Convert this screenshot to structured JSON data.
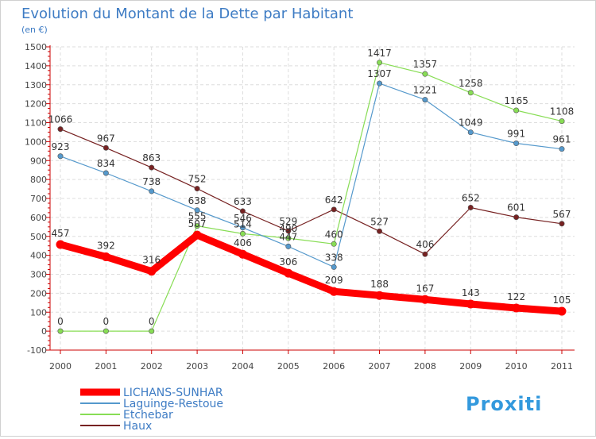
{
  "chart_data": {
    "type": "line",
    "title": "Evolution du Montant de la Dette par Habitant",
    "subtitle": "(en €)",
    "x": [
      "2000",
      "2001",
      "2002",
      "2003",
      "2004",
      "2005",
      "2006",
      "2007",
      "2008",
      "2009",
      "2010",
      "2011"
    ],
    "ylim": [
      -100,
      1500
    ],
    "yticks": [
      -100,
      0,
      100,
      200,
      300,
      400,
      500,
      600,
      700,
      800,
      900,
      1000,
      1100,
      1200,
      1300,
      1400,
      1500
    ],
    "grid": true,
    "legend_position": "bottom-left",
    "series": [
      {
        "name": "LICHANS-SUNHAR",
        "color": "#ff0000",
        "values": [
          457,
          392,
          316,
          507,
          406,
          306,
          209,
          188,
          167,
          143,
          122,
          105
        ]
      },
      {
        "name": "Laguinge-Restoue",
        "color": "#5599cc",
        "values": [
          923,
          834,
          738,
          638,
          546,
          447,
          338,
          1307,
          1221,
          1049,
          991,
          961
        ]
      },
      {
        "name": "Etchebar",
        "color": "#88dd55",
        "values": [
          0,
          0,
          0,
          555,
          514,
          490,
          460,
          1417,
          1357,
          1258,
          1165,
          1108
        ]
      },
      {
        "name": "Haux",
        "color": "#772222",
        "values": [
          1066,
          967,
          863,
          752,
          633,
          529,
          642,
          527,
          406,
          652,
          601,
          567
        ]
      }
    ]
  },
  "branding": {
    "text": "Proxiti"
  }
}
